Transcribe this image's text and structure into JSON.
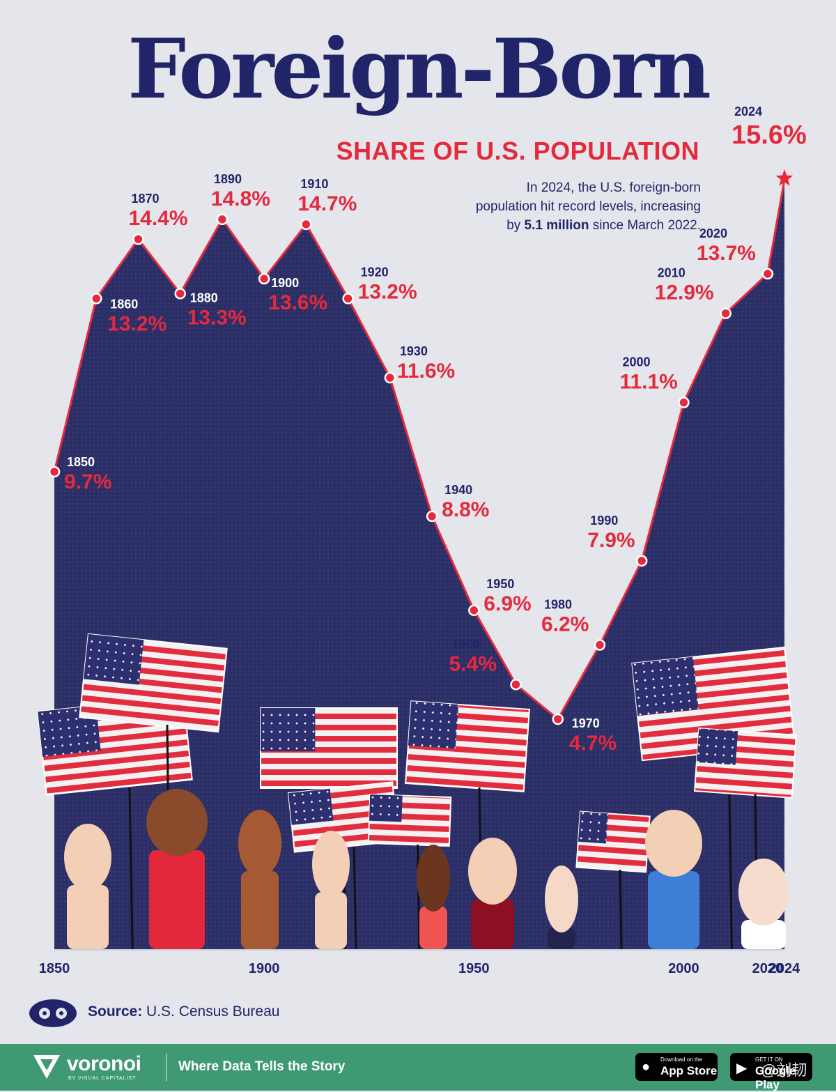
{
  "title": "Foreign-Born",
  "subtitle": "SHARE OF U.S. POPULATION",
  "annotation": {
    "line1": "In 2024, the U.S. foreign-born",
    "line2": "population hit record levels, increasing",
    "line3_prefix": "by ",
    "line3_bold": "5.1 million",
    "line3_suffix": " since March 2022."
  },
  "source": {
    "label": "Source:",
    "text": " U.S. Census Bureau"
  },
  "footer": {
    "brand": "voronoi",
    "brand_sub": "BY VISUAL CAPITALIST",
    "tagline": "Where Data Tells the Story",
    "apple_small": "Download on the",
    "apple_big": "App Store",
    "google_small": "GET IT ON",
    "google_big": "Google Play",
    "watermark": "@刘韧"
  },
  "colors": {
    "navy": "#2c2e66",
    "red": "#e42a3c",
    "background": "#e4e6ec",
    "footer_green": "#3f9a74"
  },
  "chart_data": {
    "type": "area",
    "title": "Foreign-Born",
    "subtitle": "SHARE OF U.S. POPULATION",
    "unit": "%",
    "x": [
      1850,
      1860,
      1870,
      1880,
      1890,
      1900,
      1910,
      1920,
      1930,
      1940,
      1950,
      1960,
      1970,
      1980,
      1990,
      2000,
      2010,
      2020,
      2024
    ],
    "values": [
      9.7,
      13.2,
      14.4,
      13.3,
      14.8,
      13.6,
      14.7,
      13.2,
      11.6,
      8.8,
      6.9,
      5.4,
      4.7,
      6.2,
      7.9,
      11.1,
      12.9,
      13.7,
      15.6
    ],
    "year_labels": [
      "1850",
      "1860",
      "1870",
      "1880",
      "1890",
      "1900",
      "1910",
      "1920",
      "1930",
      "1940",
      "1950",
      "1960",
      "1970",
      "1980",
      "1990",
      "2000",
      "2010",
      "2020",
      "2024"
    ],
    "value_labels": [
      "9.7%",
      "13.2%",
      "14.4%",
      "13.3%",
      "14.8%",
      "13.6%",
      "14.7%",
      "13.2%",
      "11.6%",
      "8.8%",
      "6.9%",
      "5.4%",
      "4.7%",
      "6.2%",
      "7.9%",
      "11.1%",
      "12.9%",
      "13.7%",
      "15.6%"
    ],
    "x_ticks": [
      "1850",
      "1900",
      "1950",
      "2000",
      "2020",
      "2024"
    ],
    "highlight": "2024",
    "grid": false,
    "legend": "none"
  }
}
